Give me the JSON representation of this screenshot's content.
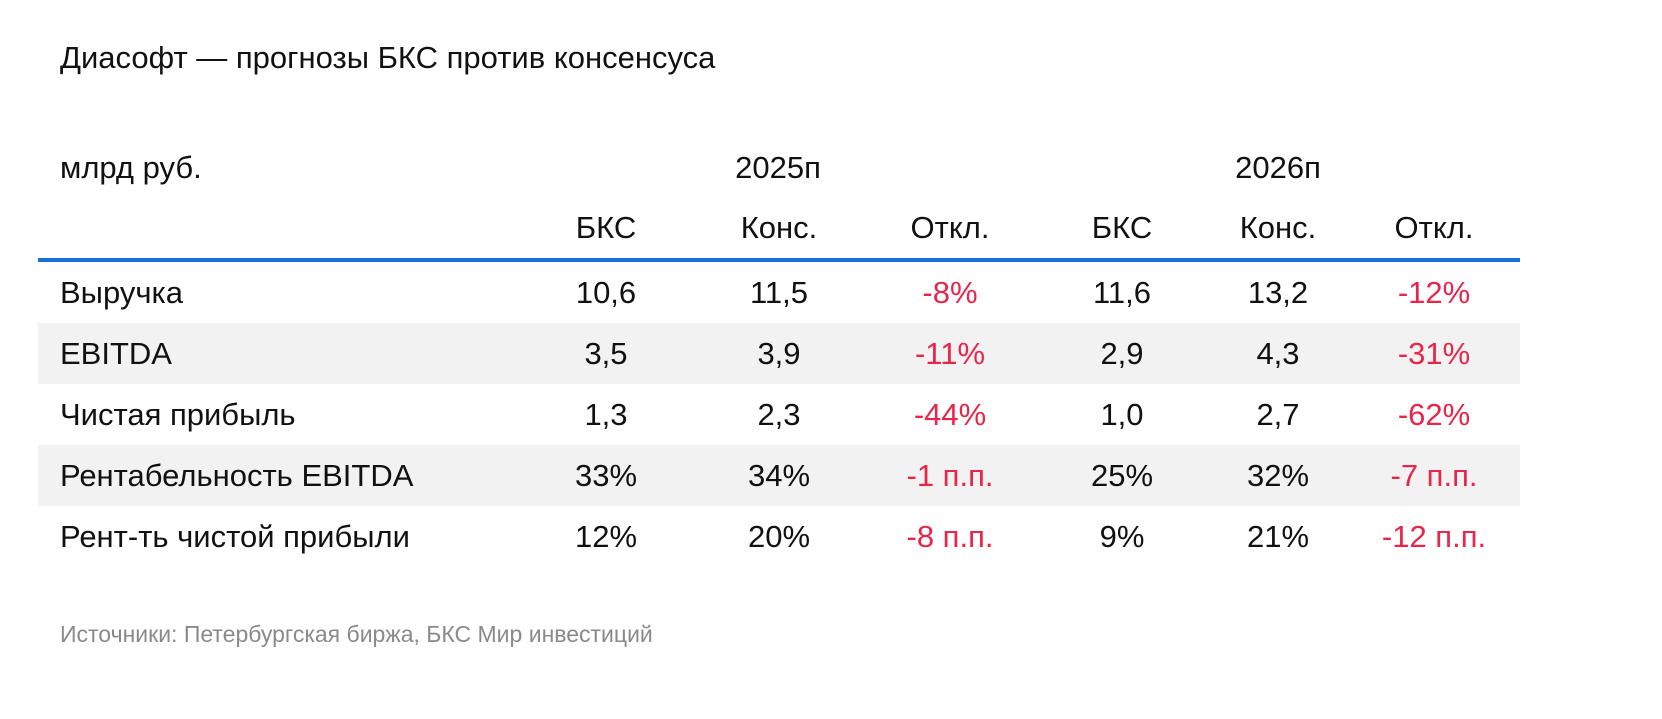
{
  "title": "Диасофт — прогнозы БКС против консенсуса",
  "unit_label": "млрд руб.",
  "years": [
    "2025п",
    "2026п"
  ],
  "subheaders": [
    "БКС",
    "Конс.",
    "Откл.",
    "БКС",
    "Конс.",
    "Откл."
  ],
  "rows": [
    {
      "label": "Выручка",
      "values": [
        "10,6",
        "11,5",
        "-8%",
        "11,6",
        "13,2",
        "-12%"
      ]
    },
    {
      "label": "EBITDA",
      "values": [
        "3,5",
        "3,9",
        "-11%",
        "2,9",
        "4,3",
        "-31%"
      ]
    },
    {
      "label": "Чистая прибыль",
      "values": [
        "1,3",
        "2,3",
        "-44%",
        "1,0",
        "2,7",
        "-62%"
      ]
    },
    {
      "label": "Рентабельность EBITDA",
      "values": [
        "33%",
        "34%",
        "-1 п.п.",
        "25%",
        "32%",
        "-7 п.п."
      ]
    },
    {
      "label": "Рент-ть чистой прибыли",
      "values": [
        "12%",
        "20%",
        "-8 п.п.",
        "9%",
        "21%",
        "-12 п.п."
      ]
    }
  ],
  "source": "Источники: Петербургская биржа, БКС Мир инвестиций",
  "colors": {
    "accent_line": "#1a6fd6",
    "negative": "#e8264a",
    "row_shade": "#f2f2f2",
    "source_text": "#8a8a8a"
  }
}
